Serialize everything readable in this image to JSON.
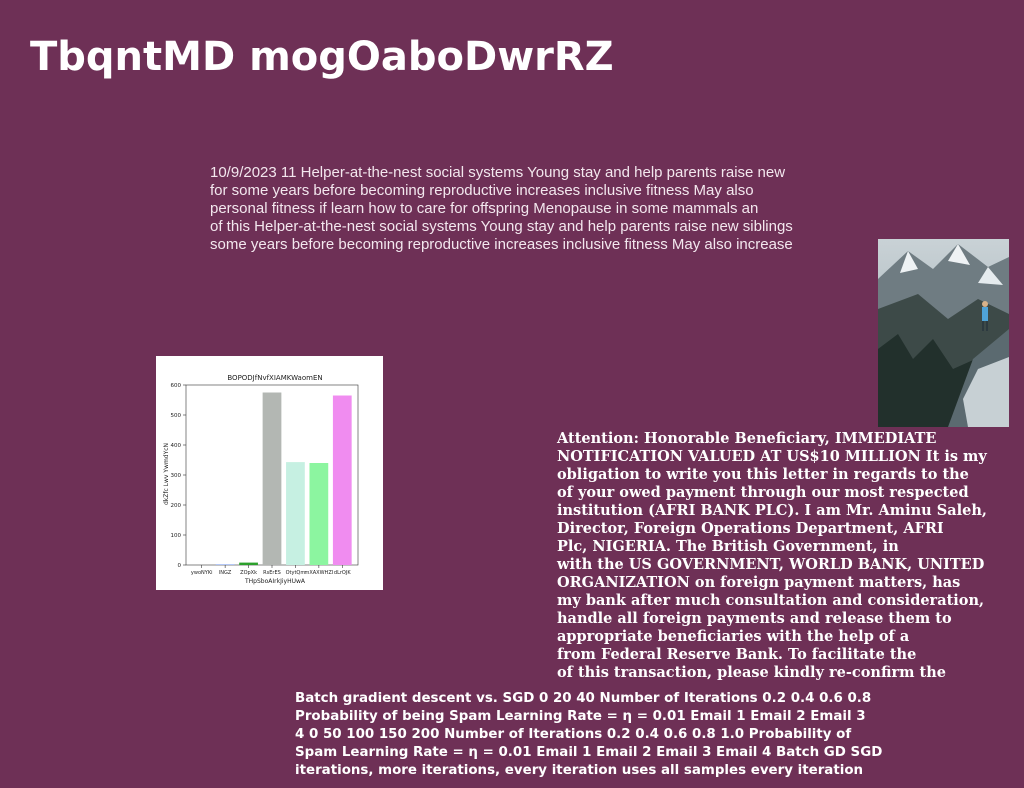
{
  "page": {
    "title": "TbqntMD mogOaboDwrRZ",
    "background": "#6e3056"
  },
  "paragraph": {
    "lines": [
      "10/9/2023 11 Helper-at-the-nest social systems Young stay and help parents raise new",
      "for some years before becoming reproductive increases inclusive fitness May also",
      "personal fitness if learn how to care for offspring Menopause in some mammals an",
      "of this Helper-at-the-nest social systems Young stay and help parents raise new siblings",
      "some years before becoming reproductive increases inclusive fitness May also increase"
    ]
  },
  "photo": {
    "subject": "hiker-on-snowy-mountain"
  },
  "letter": {
    "lines": [
      "Attention: Honorable Beneficiary, IMMEDIATE",
      "NOTIFICATION VALUED AT US$10 MILLION It is my",
      "obligation to write you this letter in regards to the",
      "of your owed payment through our most respected",
      "institution (AFRI BANK PLC). I am Mr. Aminu Saleh,",
      "Director, Foreign Operations Department, AFRI",
      "Plc, NIGERIA. The British Government, in",
      "with the US GOVERNMENT, WORLD BANK, UNITED",
      "ORGANIZATION on foreign payment matters, has",
      "my bank after much consultation and consideration,",
      "handle all foreign payments and release them to",
      "appropriate beneficiaries with the help of a",
      "from Federal Reserve Bank. To facilitate the",
      "of this transaction, please kindly re-confirm the"
    ]
  },
  "bottom_text": {
    "lines": [
      "Batch gradient descent vs. SGD 0 20 40 Number of Iterations 0.2 0.4 0.6 0.8",
      "Probability of being Spam Learning Rate = η = 0.01 Email 1 Email 2 Email 3",
      "4 0 50 100 150 200 Number of Iterations 0.2 0.4 0.6 0.8 1.0 Probability of",
      "Spam Learning Rate = η = 0.01 Email 1 Email 2 Email 3 Email 4 Batch GD SGD",
      "iterations, more iterations, every iteration uses all samples every iteration"
    ]
  },
  "chart_data": {
    "type": "bar",
    "title": "BOPODJfNvfXIAMKWaomEN",
    "xlabel": "THpSboAIrkJiyHUwA",
    "ylabel": "dkZfc Lwv YwmdYcN",
    "categories": [
      "ywoNYKi",
      "lNGZ",
      "ZOpXk",
      "RsErES",
      "OtytQm",
      "mXAXWHZI",
      "dLrOJK"
    ],
    "values": [
      0,
      2,
      8,
      575,
      343,
      340,
      565
    ],
    "colors": [
      "#7e7e7e",
      "#7fa0f0",
      "#2ca02c",
      "#b3b7b3",
      "#c6f0e2",
      "#8cf5a0",
      "#f08cf0"
    ],
    "ylim": [
      0,
      600
    ],
    "yticks": [
      0,
      100,
      200,
      300,
      400,
      500,
      600
    ],
    "grid": false,
    "legend": "none"
  }
}
